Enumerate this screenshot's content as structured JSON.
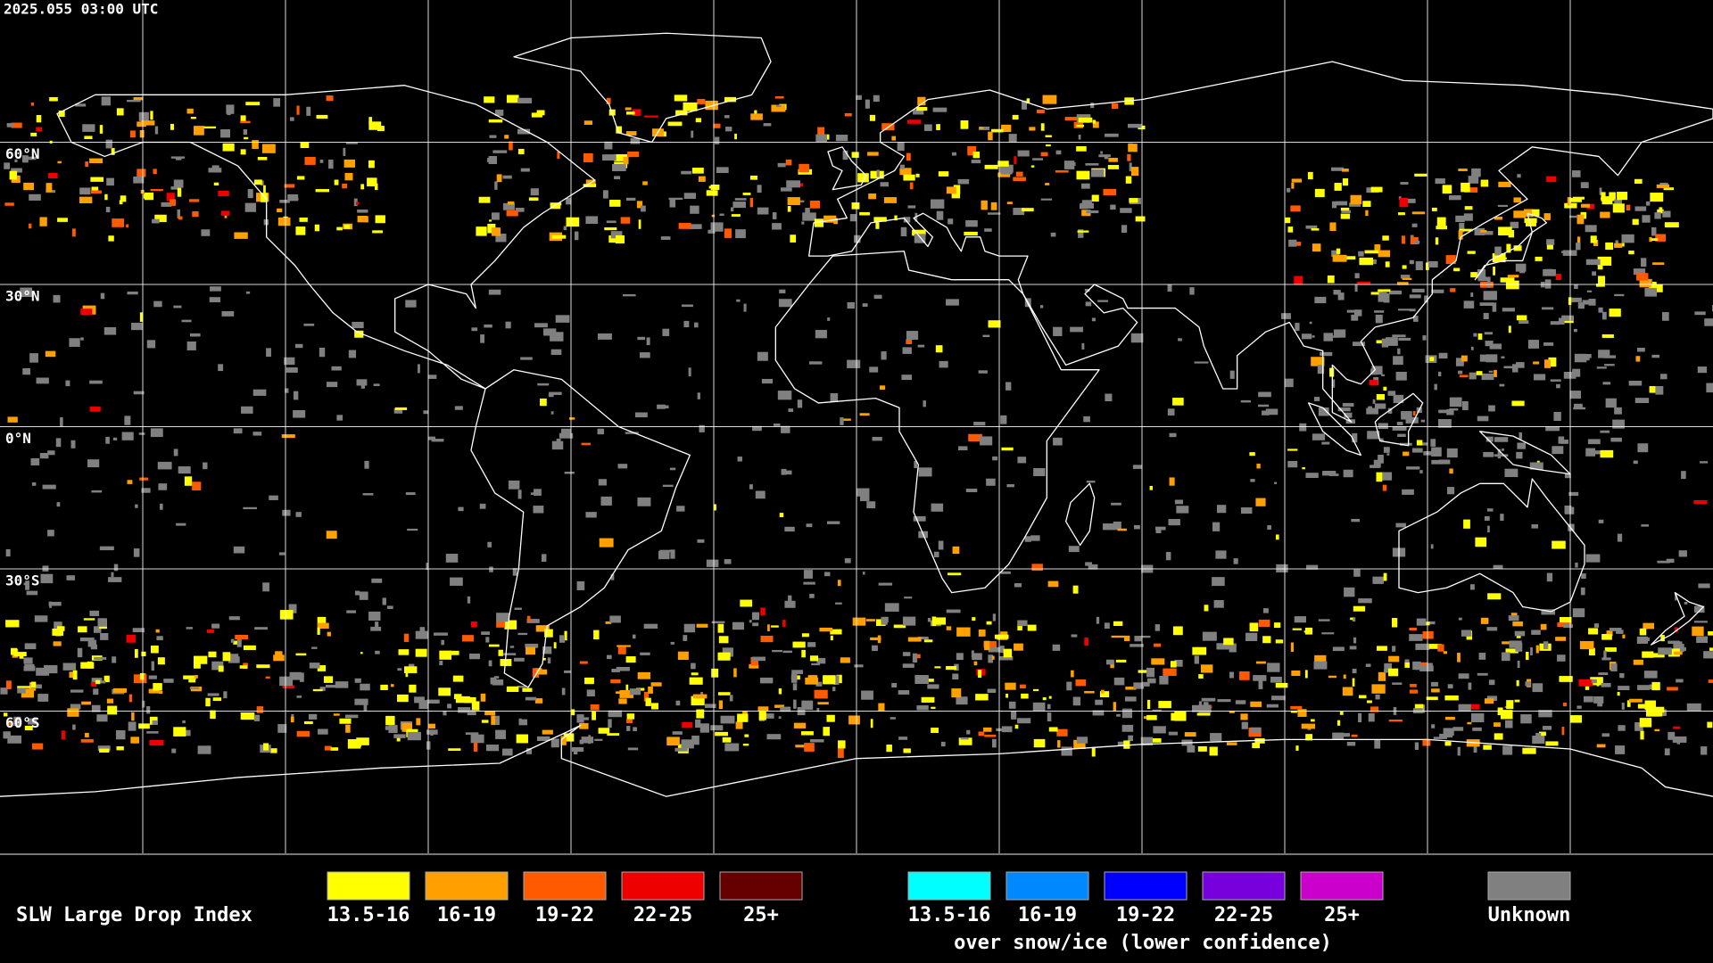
{
  "header": {
    "timestamp": "2025.055 03:00 UTC"
  },
  "map": {
    "lat_labels": [
      "60°N",
      "30°N",
      "0°N",
      "30°S",
      "60°S"
    ]
  },
  "legend": {
    "title": "SLW Large Drop Index",
    "items": [
      {
        "label": "13.5-16",
        "color": "#ffff00"
      },
      {
        "label": "16-19",
        "color": "#ffa000"
      },
      {
        "label": "19-22",
        "color": "#ff5a00"
      },
      {
        "label": "22-25",
        "color": "#ee0000"
      },
      {
        "label": "25+",
        "color": "#660000"
      }
    ],
    "snow_items": [
      {
        "label": "13.5-16",
        "color": "#00ffff"
      },
      {
        "label": "16-19",
        "color": "#0088ff"
      },
      {
        "label": "19-22",
        "color": "#0000ff"
      },
      {
        "label": "22-25",
        "color": "#7700dd"
      },
      {
        "label": "25+",
        "color": "#cc00cc"
      }
    ],
    "snow_caption": "over snow/ice (lower confidence)",
    "unknown": {
      "label": "Unknown",
      "color": "#808080"
    }
  }
}
